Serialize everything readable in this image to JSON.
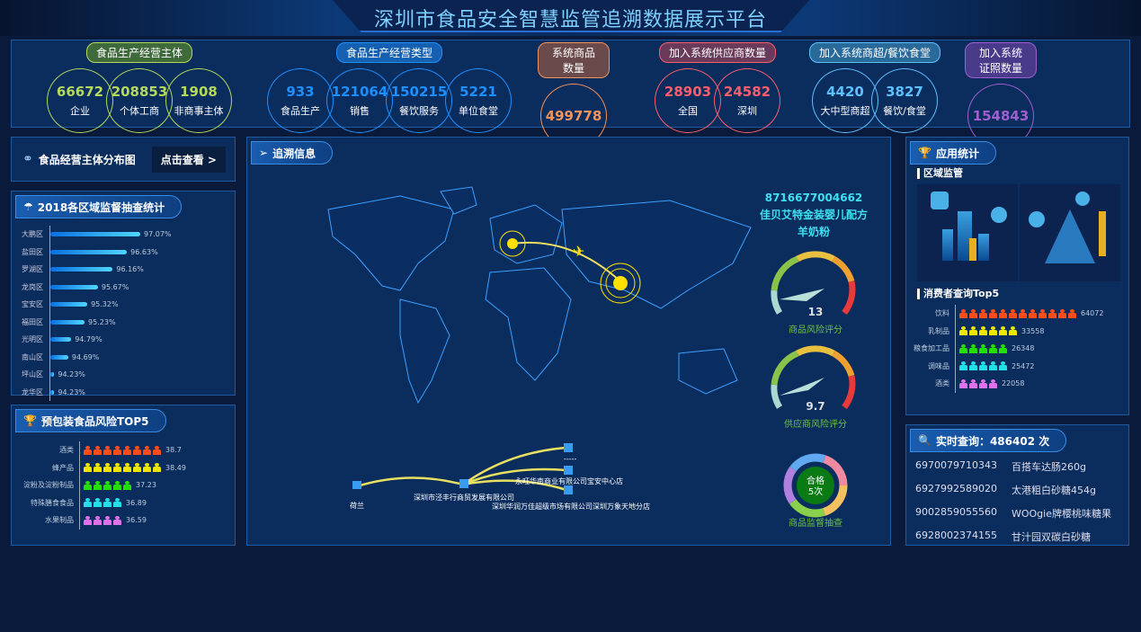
{
  "title": "深圳市食品安全智慧监管追溯数据展示平台",
  "stats": [
    {
      "label": "食品生产经营主体",
      "color": "#b5d95a",
      "pill": "#3f6a3c",
      "items": [
        {
          "v": "66672",
          "l": "企业"
        },
        {
          "v": "208853",
          "l": "个体工商"
        },
        {
          "v": "1908",
          "l": "非商事主体"
        }
      ]
    },
    {
      "label": "食品生产经营类型",
      "color": "#1e8fff",
      "pill": "#1560b0",
      "items": [
        {
          "v": "933",
          "l": "食品生产"
        },
        {
          "v": "121064",
          "l": "销售"
        },
        {
          "v": "150215",
          "l": "餐饮服务"
        },
        {
          "v": "5221",
          "l": "单位食堂"
        }
      ]
    },
    {
      "label": "系统商品数量",
      "color": "#f2935a",
      "pill": "#6a4a4a",
      "items": [
        {
          "v": "499778",
          "l": ""
        }
      ]
    },
    {
      "label": "加入系统供应商数量",
      "color": "#ff5d6c",
      "pill": "#6a3a5a",
      "items": [
        {
          "v": "28903",
          "l": "全国"
        },
        {
          "v": "24582",
          "l": "深圳"
        }
      ]
    },
    {
      "label": "加入系统商超/餐饮食堂",
      "color": "#5ec0ff",
      "pill": "#2a6a9a",
      "items": [
        {
          "v": "4420",
          "l": "大中型商超"
        },
        {
          "v": "3827",
          "l": "餐饮/食堂"
        }
      ]
    },
    {
      "label": "加入系统证照数量",
      "color": "#a05ed0",
      "pill": "#4a3a8a",
      "items": [
        {
          "v": "154843",
          "l": ""
        }
      ]
    }
  ],
  "distribution": {
    "title": "食品经营主体分布图",
    "button": "点击查看 >"
  },
  "inspection": {
    "title": "2018各区域监督抽查统计",
    "chart_data": {
      "type": "bar",
      "categories": [
        "大鹏区",
        "盐田区",
        "罗湖区",
        "龙岗区",
        "宝安区",
        "福田区",
        "光明区",
        "南山区",
        "坪山区",
        "龙华区"
      ],
      "values": [
        97.07,
        96.63,
        96.16,
        95.67,
        95.32,
        95.23,
        94.79,
        94.69,
        94.23,
        94.23
      ],
      "labels": [
        "97.07%",
        "96.63%",
        "96.16%",
        "95.67%",
        "95.32%",
        "95.23%",
        "94.79%",
        "94.69%",
        "94.23%",
        "94.23%"
      ]
    }
  },
  "risk_top5": {
    "title": "预包装食品风险TOP5",
    "chart_data": {
      "type": "bar",
      "categories": [
        "酒类",
        "蜂产品",
        "淀粉及淀粉制品",
        "特殊膳食食品",
        "水果制品"
      ],
      "values": [
        38.7,
        38.49,
        37.23,
        36.89,
        36.59
      ],
      "icons": [
        8,
        8,
        5,
        4,
        4
      ],
      "colors": [
        "#ff4d1a",
        "#f0e600",
        "#22e000",
        "#22e0e8",
        "#e070e8"
      ]
    }
  },
  "trace": {
    "title": "追溯信息",
    "barcode": "8716677004662",
    "product": "佳贝艾特金装婴儿配方羊奶粉",
    "gauge1": {
      "value": "13",
      "label": "商品风险评分"
    },
    "gauge2": {
      "value": "9.7",
      "label": "供应商风险评分"
    },
    "donut": {
      "center1": "合格",
      "center2": "5次",
      "label": "商品监督抽查"
    },
    "flow": {
      "origin": "荷兰",
      "hub": "深圳市泾丰行商贸发展有限公司",
      "dest": [
        "-----",
        "永旺华南商业有限公司宝安中心店",
        "深圳华润万佳超级市场有限公司深圳万象天地分店"
      ]
    }
  },
  "app_stats": {
    "title": "应用统计",
    "region": "区域监管",
    "consumer_title": "消费者查询Top5",
    "chart_data": {
      "type": "bar",
      "categories": [
        "饮料",
        "乳制品",
        "粮食加工品",
        "调味品",
        "酒类"
      ],
      "values": [
        64072,
        33558,
        26348,
        25472,
        22058
      ],
      "icons": [
        12,
        6,
        5,
        5,
        4
      ],
      "colors": [
        "#ff4d1a",
        "#f0e600",
        "#22e000",
        "#22e0e8",
        "#e070e8"
      ]
    }
  },
  "realtime": {
    "title": "实时查询：486402 次",
    "rows": [
      {
        "code": "6970079710343",
        "name": "百搭车达肠260g"
      },
      {
        "code": "6927992589020",
        "name": "太港粗白砂糖454g"
      },
      {
        "code": "9002859055560",
        "name": "WOOgie牌樱桃味糖果"
      },
      {
        "code": "6928002374155",
        "name": "甘汁园双碳白砂糖"
      }
    ]
  }
}
